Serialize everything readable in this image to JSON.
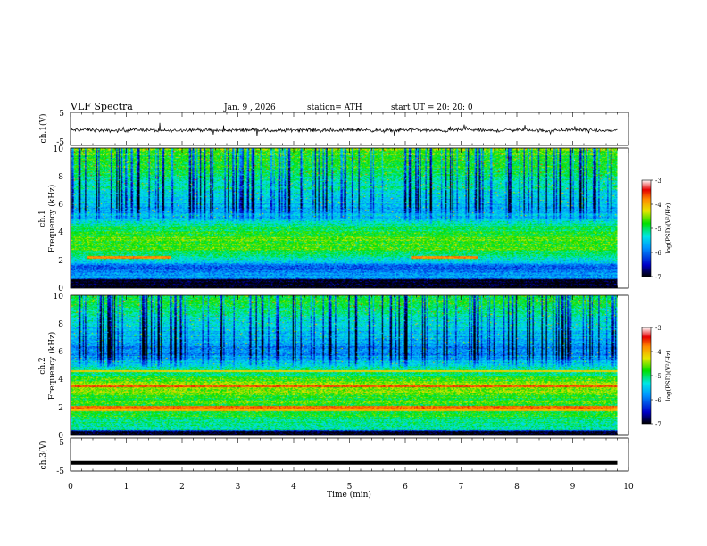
{
  "header": {
    "title": "VLF  Spectra",
    "date": "Jan.  9  , 2026",
    "station": "station= ATH",
    "start_ut": "start  UT  =    20: 20: 0"
  },
  "chart_data": [
    {
      "type": "line",
      "name": "ch1-waveform",
      "ylabel": "ch.1(V)",
      "ylim": [
        -5,
        5
      ],
      "yticks": [
        5,
        -5
      ],
      "xlim": [
        0,
        10
      ],
      "data_end_min": 9.8,
      "color": "#000000"
    },
    {
      "type": "heatmap",
      "name": "ch1-spectrogram",
      "ylabel": "ch.1\nFrequency  (kHz)",
      "ylim": [
        0,
        10
      ],
      "yticks": [
        0,
        2,
        4,
        6,
        8,
        10
      ],
      "xlim": [
        0,
        10
      ],
      "data_end_min": 9.8,
      "profile": [
        {
          "f": 0.0,
          "v": -7.0
        },
        {
          "f": 0.6,
          "v": -7.0
        },
        {
          "f": 0.7,
          "v": -5.6
        },
        {
          "f": 1.0,
          "v": -5.8
        },
        {
          "f": 1.5,
          "v": -6.1
        },
        {
          "f": 2.0,
          "v": -5.3
        },
        {
          "f": 2.5,
          "v": -4.9
        },
        {
          "f": 3.0,
          "v": -4.7
        },
        {
          "f": 3.5,
          "v": -4.6
        },
        {
          "f": 4.0,
          "v": -4.9
        },
        {
          "f": 4.8,
          "v": -5.3
        },
        {
          "f": 5.5,
          "v": -5.7
        },
        {
          "f": 6.5,
          "v": -5.4
        },
        {
          "f": 8.0,
          "v": -5.0
        },
        {
          "f": 10.0,
          "v": -4.6
        }
      ],
      "lines": [
        {
          "f": 2.2,
          "v": -3.8,
          "t0": 0.3,
          "t1": 1.8
        },
        {
          "f": 2.2,
          "v": -3.8,
          "t0": 6.1,
          "t1": 7.3
        },
        {
          "f": 0.9,
          "v": -6.8,
          "t0": 0.0,
          "t1": 9.8
        },
        {
          "f": 5.3,
          "v": -6.0,
          "t0": 0.0,
          "t1": 9.8
        }
      ]
    },
    {
      "type": "heatmap",
      "name": "ch2-spectrogram",
      "ylabel": "ch.2\nFrequency  (kHz)",
      "ylim": [
        0,
        10
      ],
      "yticks": [
        0,
        2,
        4,
        6,
        8,
        10
      ],
      "xlim": [
        0,
        10
      ],
      "data_end_min": 9.8,
      "profile": [
        {
          "f": 0.0,
          "v": -7.0
        },
        {
          "f": 0.3,
          "v": -7.0
        },
        {
          "f": 0.4,
          "v": -5.2
        },
        {
          "f": 1.0,
          "v": -5.0
        },
        {
          "f": 1.8,
          "v": -4.7
        },
        {
          "f": 2.5,
          "v": -4.8
        },
        {
          "f": 3.0,
          "v": -4.6
        },
        {
          "f": 3.5,
          "v": -4.4
        },
        {
          "f": 4.2,
          "v": -4.9
        },
        {
          "f": 5.0,
          "v": -5.3
        },
        {
          "f": 6.0,
          "v": -5.9
        },
        {
          "f": 7.0,
          "v": -5.6
        },
        {
          "f": 8.5,
          "v": -5.2
        },
        {
          "f": 10.0,
          "v": -4.8
        }
      ],
      "lines": [
        {
          "f": 3.5,
          "v": -3.6,
          "t0": 0.0,
          "t1": 9.8
        },
        {
          "f": 2.0,
          "v": -3.7,
          "t0": 0.0,
          "t1": 9.8
        },
        {
          "f": 4.6,
          "v": -4.2,
          "t0": 0.0,
          "t1": 9.8
        },
        {
          "f": 1.8,
          "v": -4.0,
          "t0": 0.0,
          "t1": 9.8
        },
        {
          "f": 0.6,
          "v": -5.8,
          "t0": 0.0,
          "t1": 9.8
        }
      ]
    },
    {
      "type": "line",
      "name": "ch3-waveform",
      "ylabel": "ch.3(V)",
      "ylim": [
        -5,
        5
      ],
      "yticks": [
        5,
        -5
      ],
      "xlim": [
        0,
        10
      ],
      "level": -2.5,
      "data_end_min": 9.8,
      "color": "#000000"
    }
  ],
  "x_axis": {
    "label": "Time  (min)",
    "ticks": [
      "0",
      "1",
      "2",
      "3",
      "4",
      "5",
      "6",
      "7",
      "8",
      "9",
      "10"
    ],
    "range": [
      0,
      10
    ]
  },
  "colorbar": {
    "label": "log(PSD)(V²/Hz)",
    "ticks": [
      "-3",
      "-4",
      "-5",
      "-6",
      "-7"
    ],
    "range": [
      -7,
      -3
    ]
  }
}
